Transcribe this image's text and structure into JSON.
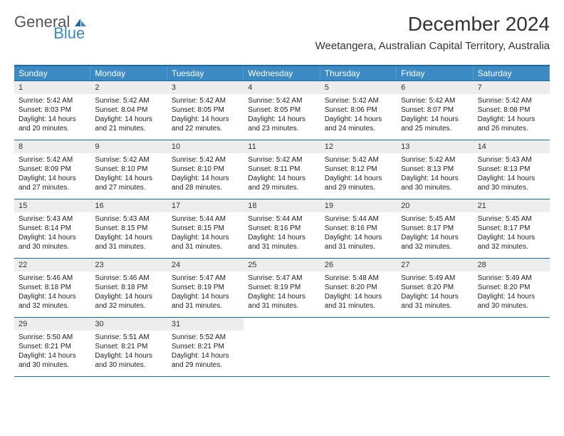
{
  "logo": {
    "text1": "General",
    "text2": "Blue"
  },
  "title": "December 2024",
  "subtitle": "Weetangera, Australian Capital Territory, Australia",
  "colors": {
    "header_bg": "#3b8ac4",
    "border": "#1f6aa5",
    "daynum_bg": "#ededed",
    "page_bg": "#ffffff",
    "text": "#222222"
  },
  "day_names": [
    "Sunday",
    "Monday",
    "Tuesday",
    "Wednesday",
    "Thursday",
    "Friday",
    "Saturday"
  ],
  "weeks": [
    [
      {
        "n": "1",
        "sr": "5:42 AM",
        "ss": "8:03 PM",
        "d1": "Daylight: 14 hours",
        "d2": "and 20 minutes."
      },
      {
        "n": "2",
        "sr": "5:42 AM",
        "ss": "8:04 PM",
        "d1": "Daylight: 14 hours",
        "d2": "and 21 minutes."
      },
      {
        "n": "3",
        "sr": "5:42 AM",
        "ss": "8:05 PM",
        "d1": "Daylight: 14 hours",
        "d2": "and 22 minutes."
      },
      {
        "n": "4",
        "sr": "5:42 AM",
        "ss": "8:05 PM",
        "d1": "Daylight: 14 hours",
        "d2": "and 23 minutes."
      },
      {
        "n": "5",
        "sr": "5:42 AM",
        "ss": "8:06 PM",
        "d1": "Daylight: 14 hours",
        "d2": "and 24 minutes."
      },
      {
        "n": "6",
        "sr": "5:42 AM",
        "ss": "8:07 PM",
        "d1": "Daylight: 14 hours",
        "d2": "and 25 minutes."
      },
      {
        "n": "7",
        "sr": "5:42 AM",
        "ss": "8:08 PM",
        "d1": "Daylight: 14 hours",
        "d2": "and 26 minutes."
      }
    ],
    [
      {
        "n": "8",
        "sr": "5:42 AM",
        "ss": "8:09 PM",
        "d1": "Daylight: 14 hours",
        "d2": "and 27 minutes."
      },
      {
        "n": "9",
        "sr": "5:42 AM",
        "ss": "8:10 PM",
        "d1": "Daylight: 14 hours",
        "d2": "and 27 minutes."
      },
      {
        "n": "10",
        "sr": "5:42 AM",
        "ss": "8:10 PM",
        "d1": "Daylight: 14 hours",
        "d2": "and 28 minutes."
      },
      {
        "n": "11",
        "sr": "5:42 AM",
        "ss": "8:11 PM",
        "d1": "Daylight: 14 hours",
        "d2": "and 29 minutes."
      },
      {
        "n": "12",
        "sr": "5:42 AM",
        "ss": "8:12 PM",
        "d1": "Daylight: 14 hours",
        "d2": "and 29 minutes."
      },
      {
        "n": "13",
        "sr": "5:42 AM",
        "ss": "8:13 PM",
        "d1": "Daylight: 14 hours",
        "d2": "and 30 minutes."
      },
      {
        "n": "14",
        "sr": "5:43 AM",
        "ss": "8:13 PM",
        "d1": "Daylight: 14 hours",
        "d2": "and 30 minutes."
      }
    ],
    [
      {
        "n": "15",
        "sr": "5:43 AM",
        "ss": "8:14 PM",
        "d1": "Daylight: 14 hours",
        "d2": "and 30 minutes."
      },
      {
        "n": "16",
        "sr": "5:43 AM",
        "ss": "8:15 PM",
        "d1": "Daylight: 14 hours",
        "d2": "and 31 minutes."
      },
      {
        "n": "17",
        "sr": "5:44 AM",
        "ss": "8:15 PM",
        "d1": "Daylight: 14 hours",
        "d2": "and 31 minutes."
      },
      {
        "n": "18",
        "sr": "5:44 AM",
        "ss": "8:16 PM",
        "d1": "Daylight: 14 hours",
        "d2": "and 31 minutes."
      },
      {
        "n": "19",
        "sr": "5:44 AM",
        "ss": "8:16 PM",
        "d1": "Daylight: 14 hours",
        "d2": "and 31 minutes."
      },
      {
        "n": "20",
        "sr": "5:45 AM",
        "ss": "8:17 PM",
        "d1": "Daylight: 14 hours",
        "d2": "and 32 minutes."
      },
      {
        "n": "21",
        "sr": "5:45 AM",
        "ss": "8:17 PM",
        "d1": "Daylight: 14 hours",
        "d2": "and 32 minutes."
      }
    ],
    [
      {
        "n": "22",
        "sr": "5:46 AM",
        "ss": "8:18 PM",
        "d1": "Daylight: 14 hours",
        "d2": "and 32 minutes."
      },
      {
        "n": "23",
        "sr": "5:46 AM",
        "ss": "8:18 PM",
        "d1": "Daylight: 14 hours",
        "d2": "and 32 minutes."
      },
      {
        "n": "24",
        "sr": "5:47 AM",
        "ss": "8:19 PM",
        "d1": "Daylight: 14 hours",
        "d2": "and 31 minutes."
      },
      {
        "n": "25",
        "sr": "5:47 AM",
        "ss": "8:19 PM",
        "d1": "Daylight: 14 hours",
        "d2": "and 31 minutes."
      },
      {
        "n": "26",
        "sr": "5:48 AM",
        "ss": "8:20 PM",
        "d1": "Daylight: 14 hours",
        "d2": "and 31 minutes."
      },
      {
        "n": "27",
        "sr": "5:49 AM",
        "ss": "8:20 PM",
        "d1": "Daylight: 14 hours",
        "d2": "and 31 minutes."
      },
      {
        "n": "28",
        "sr": "5:49 AM",
        "ss": "8:20 PM",
        "d1": "Daylight: 14 hours",
        "d2": "and 30 minutes."
      }
    ],
    [
      {
        "n": "29",
        "sr": "5:50 AM",
        "ss": "8:21 PM",
        "d1": "Daylight: 14 hours",
        "d2": "and 30 minutes."
      },
      {
        "n": "30",
        "sr": "5:51 AM",
        "ss": "8:21 PM",
        "d1": "Daylight: 14 hours",
        "d2": "and 30 minutes."
      },
      {
        "n": "31",
        "sr": "5:52 AM",
        "ss": "8:21 PM",
        "d1": "Daylight: 14 hours",
        "d2": "and 29 minutes."
      },
      null,
      null,
      null,
      null
    ]
  ],
  "sunrise_prefix": "Sunrise: ",
  "sunset_prefix": "Sunset: "
}
